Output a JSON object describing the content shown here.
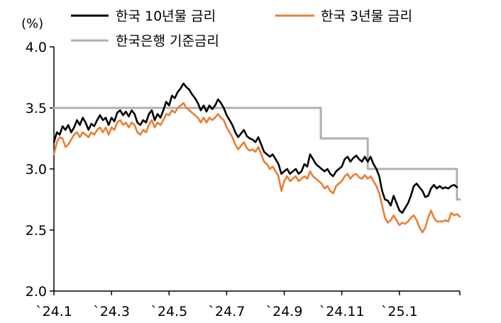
{
  "chart_data": {
    "type": "line",
    "title": "",
    "xlabel": "",
    "ylabel": "(%)",
    "ylim": [
      2.0,
      4.0
    ],
    "yticks": [
      "2.0",
      "2.5",
      "3.0",
      "3.5",
      "4.0"
    ],
    "xticks": [
      {
        "label": "`24.1",
        "month": 0
      },
      {
        "label": "`24.3",
        "month": 2
      },
      {
        "label": "`24.5",
        "month": 4
      },
      {
        "label": "`24.7",
        "month": 6
      },
      {
        "label": "`24.9",
        "month": 8
      },
      {
        "label": "`24.11",
        "month": 10
      },
      {
        "label": "`25.1",
        "month": 12
      }
    ],
    "xlim": [
      0,
      14.1
    ],
    "grid": false,
    "legend_position": "top",
    "series": [
      {
        "name": "한국 10년물 금리",
        "color": "#000000",
        "points": [
          [
            0.0,
            3.22
          ],
          [
            0.1,
            3.3
          ],
          [
            0.2,
            3.28
          ],
          [
            0.3,
            3.35
          ],
          [
            0.4,
            3.32
          ],
          [
            0.5,
            3.36
          ],
          [
            0.6,
            3.3
          ],
          [
            0.7,
            3.34
          ],
          [
            0.8,
            3.4
          ],
          [
            0.9,
            3.36
          ],
          [
            1.0,
            3.42
          ],
          [
            1.1,
            3.38
          ],
          [
            1.2,
            3.32
          ],
          [
            1.3,
            3.37
          ],
          [
            1.4,
            3.35
          ],
          [
            1.5,
            3.4
          ],
          [
            1.6,
            3.44
          ],
          [
            1.7,
            3.4
          ],
          [
            1.8,
            3.42
          ],
          [
            1.9,
            3.36
          ],
          [
            2.0,
            3.42
          ],
          [
            2.1,
            3.39
          ],
          [
            2.2,
            3.46
          ],
          [
            2.3,
            3.48
          ],
          [
            2.4,
            3.44
          ],
          [
            2.5,
            3.47
          ],
          [
            2.6,
            3.43
          ],
          [
            2.7,
            3.48
          ],
          [
            2.8,
            3.45
          ],
          [
            2.9,
            3.38
          ],
          [
            3.0,
            3.36
          ],
          [
            3.1,
            3.4
          ],
          [
            3.2,
            3.38
          ],
          [
            3.3,
            3.45
          ],
          [
            3.4,
            3.48
          ],
          [
            3.5,
            3.4
          ],
          [
            3.6,
            3.45
          ],
          [
            3.7,
            3.42
          ],
          [
            3.8,
            3.48
          ],
          [
            3.9,
            3.55
          ],
          [
            4.0,
            3.52
          ],
          [
            4.1,
            3.6
          ],
          [
            4.2,
            3.58
          ],
          [
            4.3,
            3.63
          ],
          [
            4.4,
            3.66
          ],
          [
            4.5,
            3.7
          ],
          [
            4.6,
            3.67
          ],
          [
            4.7,
            3.65
          ],
          [
            4.8,
            3.61
          ],
          [
            4.9,
            3.58
          ],
          [
            5.0,
            3.54
          ],
          [
            5.1,
            3.48
          ],
          [
            5.2,
            3.52
          ],
          [
            5.3,
            3.47
          ],
          [
            5.4,
            3.52
          ],
          [
            5.5,
            3.49
          ],
          [
            5.6,
            3.52
          ],
          [
            5.7,
            3.57
          ],
          [
            5.8,
            3.54
          ],
          [
            5.9,
            3.5
          ],
          [
            6.0,
            3.44
          ],
          [
            6.1,
            3.4
          ],
          [
            6.2,
            3.36
          ],
          [
            6.3,
            3.3
          ],
          [
            6.4,
            3.26
          ],
          [
            6.5,
            3.29
          ],
          [
            6.6,
            3.32
          ],
          [
            6.7,
            3.27
          ],
          [
            6.8,
            3.25
          ],
          [
            6.9,
            3.24
          ],
          [
            7.0,
            3.22
          ],
          [
            7.1,
            3.26
          ],
          [
            7.2,
            3.2
          ],
          [
            7.3,
            3.14
          ],
          [
            7.4,
            3.12
          ],
          [
            7.5,
            3.1
          ],
          [
            7.6,
            3.12
          ],
          [
            7.7,
            3.08
          ],
          [
            7.8,
            3.04
          ],
          [
            7.9,
            2.96
          ],
          [
            8.0,
            2.98
          ],
          [
            8.1,
            3.0
          ],
          [
            8.2,
            2.96
          ],
          [
            8.3,
            2.98
          ],
          [
            8.4,
            3.0
          ],
          [
            8.5,
            2.96
          ],
          [
            8.6,
            2.98
          ],
          [
            8.7,
            3.04
          ],
          [
            8.8,
            3.02
          ],
          [
            8.9,
            3.12
          ],
          [
            9.0,
            3.08
          ],
          [
            9.1,
            3.04
          ],
          [
            9.2,
            3.02
          ],
          [
            9.3,
            3.0
          ],
          [
            9.4,
            2.98
          ],
          [
            9.5,
            3.0
          ],
          [
            9.6,
            2.96
          ],
          [
            9.7,
            2.94
          ],
          [
            9.8,
            2.98
          ],
          [
            9.9,
            3.0
          ],
          [
            10.0,
            3.02
          ],
          [
            10.1,
            3.08
          ],
          [
            10.2,
            3.1
          ],
          [
            10.3,
            3.06
          ],
          [
            10.4,
            3.09
          ],
          [
            10.5,
            3.11
          ],
          [
            10.6,
            3.08
          ],
          [
            10.7,
            3.06
          ],
          [
            10.8,
            3.1
          ],
          [
            10.9,
            3.06
          ],
          [
            11.0,
            3.1
          ],
          [
            11.1,
            3.04
          ],
          [
            11.2,
            3.0
          ],
          [
            11.3,
            2.94
          ],
          [
            11.4,
            2.82
          ],
          [
            11.5,
            2.75
          ],
          [
            11.6,
            2.74
          ],
          [
            11.7,
            2.7
          ],
          [
            11.8,
            2.78
          ],
          [
            11.9,
            2.72
          ],
          [
            12.0,
            2.66
          ],
          [
            12.1,
            2.64
          ],
          [
            12.2,
            2.68
          ],
          [
            12.3,
            2.72
          ],
          [
            12.4,
            2.78
          ],
          [
            12.5,
            2.86
          ],
          [
            12.6,
            2.88
          ],
          [
            12.7,
            2.85
          ],
          [
            12.8,
            2.82
          ],
          [
            12.9,
            2.77
          ],
          [
            13.0,
            2.78
          ],
          [
            13.1,
            2.84
          ],
          [
            13.2,
            2.87
          ],
          [
            13.3,
            2.84
          ],
          [
            13.4,
            2.86
          ],
          [
            13.5,
            2.84
          ],
          [
            13.6,
            2.85
          ],
          [
            13.7,
            2.84
          ],
          [
            13.8,
            2.86
          ],
          [
            13.9,
            2.87
          ],
          [
            14.0,
            2.85
          ]
        ]
      },
      {
        "name": "한국 3년물 금리",
        "color": "#ED7D31",
        "points": [
          [
            0.0,
            3.12
          ],
          [
            0.1,
            3.22
          ],
          [
            0.2,
            3.26
          ],
          [
            0.3,
            3.25
          ],
          [
            0.4,
            3.18
          ],
          [
            0.5,
            3.2
          ],
          [
            0.6,
            3.24
          ],
          [
            0.7,
            3.28
          ],
          [
            0.8,
            3.3
          ],
          [
            0.9,
            3.26
          ],
          [
            1.0,
            3.3
          ],
          [
            1.1,
            3.28
          ],
          [
            1.2,
            3.26
          ],
          [
            1.3,
            3.3
          ],
          [
            1.4,
            3.28
          ],
          [
            1.5,
            3.32
          ],
          [
            1.6,
            3.34
          ],
          [
            1.7,
            3.3
          ],
          [
            1.8,
            3.34
          ],
          [
            1.9,
            3.28
          ],
          [
            2.0,
            3.34
          ],
          [
            2.1,
            3.32
          ],
          [
            2.2,
            3.38
          ],
          [
            2.3,
            3.4
          ],
          [
            2.4,
            3.36
          ],
          [
            2.5,
            3.38
          ],
          [
            2.6,
            3.34
          ],
          [
            2.7,
            3.38
          ],
          [
            2.8,
            3.36
          ],
          [
            2.9,
            3.3
          ],
          [
            3.0,
            3.28
          ],
          [
            3.1,
            3.32
          ],
          [
            3.2,
            3.3
          ],
          [
            3.3,
            3.36
          ],
          [
            3.4,
            3.4
          ],
          [
            3.5,
            3.34
          ],
          [
            3.6,
            3.38
          ],
          [
            3.7,
            3.36
          ],
          [
            3.8,
            3.4
          ],
          [
            3.9,
            3.45
          ],
          [
            4.0,
            3.44
          ],
          [
            4.1,
            3.48
          ],
          [
            4.2,
            3.46
          ],
          [
            4.3,
            3.5
          ],
          [
            4.4,
            3.52
          ],
          [
            4.5,
            3.54
          ],
          [
            4.6,
            3.5
          ],
          [
            4.7,
            3.48
          ],
          [
            4.8,
            3.46
          ],
          [
            4.9,
            3.44
          ],
          [
            5.0,
            3.42
          ],
          [
            5.1,
            3.38
          ],
          [
            5.2,
            3.42
          ],
          [
            5.3,
            3.38
          ],
          [
            5.4,
            3.42
          ],
          [
            5.5,
            3.4
          ],
          [
            5.6,
            3.42
          ],
          [
            5.7,
            3.45
          ],
          [
            5.8,
            3.42
          ],
          [
            5.9,
            3.4
          ],
          [
            6.0,
            3.34
          ],
          [
            6.1,
            3.3
          ],
          [
            6.2,
            3.26
          ],
          [
            6.3,
            3.2
          ],
          [
            6.4,
            3.16
          ],
          [
            6.5,
            3.19
          ],
          [
            6.6,
            3.22
          ],
          [
            6.7,
            3.17
          ],
          [
            6.8,
            3.15
          ],
          [
            6.9,
            3.16
          ],
          [
            7.0,
            3.14
          ],
          [
            7.1,
            3.18
          ],
          [
            7.2,
            3.12
          ],
          [
            7.3,
            3.06
          ],
          [
            7.4,
            3.04
          ],
          [
            7.5,
            3.0
          ],
          [
            7.6,
            3.02
          ],
          [
            7.7,
            2.98
          ],
          [
            7.8,
            2.94
          ],
          [
            7.9,
            2.82
          ],
          [
            8.0,
            2.9
          ],
          [
            8.1,
            2.94
          ],
          [
            8.2,
            2.9
          ],
          [
            8.3,
            2.92
          ],
          [
            8.4,
            2.94
          ],
          [
            8.5,
            2.9
          ],
          [
            8.6,
            2.92
          ],
          [
            8.7,
            2.94
          ],
          [
            8.8,
            2.92
          ],
          [
            8.9,
            2.98
          ],
          [
            9.0,
            2.94
          ],
          [
            9.1,
            2.92
          ],
          [
            9.2,
            2.9
          ],
          [
            9.3,
            2.88
          ],
          [
            9.4,
            2.84
          ],
          [
            9.5,
            2.86
          ],
          [
            9.6,
            2.82
          ],
          [
            9.7,
            2.8
          ],
          [
            9.8,
            2.86
          ],
          [
            9.9,
            2.88
          ],
          [
            10.0,
            2.9
          ],
          [
            10.1,
            2.94
          ],
          [
            10.2,
            2.96
          ],
          [
            10.3,
            2.92
          ],
          [
            10.4,
            2.95
          ],
          [
            10.5,
            2.96
          ],
          [
            10.6,
            2.93
          ],
          [
            10.7,
            2.92
          ],
          [
            10.8,
            2.95
          ],
          [
            10.9,
            2.92
          ],
          [
            11.0,
            2.94
          ],
          [
            11.1,
            2.9
          ],
          [
            11.2,
            2.86
          ],
          [
            11.3,
            2.8
          ],
          [
            11.4,
            2.7
          ],
          [
            11.5,
            2.6
          ],
          [
            11.6,
            2.56
          ],
          [
            11.7,
            2.58
          ],
          [
            11.8,
            2.62
          ],
          [
            11.9,
            2.58
          ],
          [
            12.0,
            2.54
          ],
          [
            12.1,
            2.56
          ],
          [
            12.2,
            2.55
          ],
          [
            12.3,
            2.57
          ],
          [
            12.4,
            2.6
          ],
          [
            12.5,
            2.62
          ],
          [
            12.6,
            2.58
          ],
          [
            12.7,
            2.52
          ],
          [
            12.8,
            2.48
          ],
          [
            12.9,
            2.52
          ],
          [
            13.0,
            2.6
          ],
          [
            13.1,
            2.66
          ],
          [
            13.2,
            2.6
          ],
          [
            13.3,
            2.57
          ],
          [
            13.4,
            2.57
          ],
          [
            13.5,
            2.57
          ],
          [
            13.6,
            2.58
          ],
          [
            13.7,
            2.57
          ],
          [
            13.8,
            2.64
          ],
          [
            13.9,
            2.62
          ],
          [
            14.0,
            2.63
          ],
          [
            14.1,
            2.61
          ]
        ]
      },
      {
        "name": "한국은행 기준금리",
        "color": "#B0B0B0",
        "points": [
          [
            0.0,
            3.5
          ],
          [
            9.27,
            3.5
          ],
          [
            9.27,
            3.25
          ],
          [
            10.9,
            3.25
          ],
          [
            10.9,
            3.0
          ],
          [
            14.0,
            3.0
          ],
          [
            14.0,
            2.75
          ],
          [
            14.1,
            2.75
          ]
        ]
      }
    ]
  }
}
